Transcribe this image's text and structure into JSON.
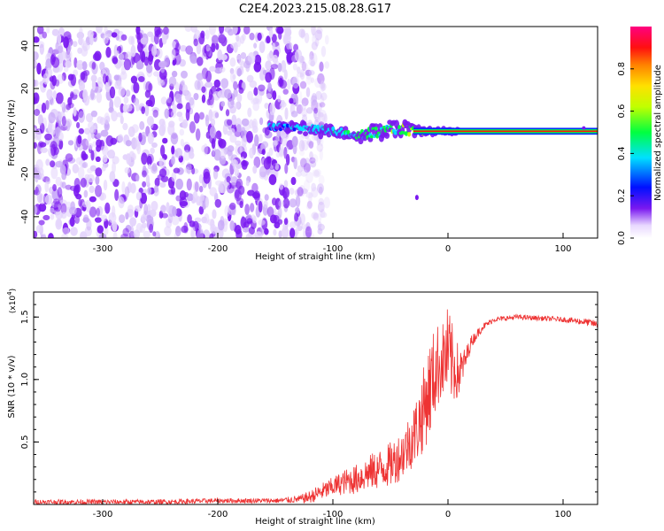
{
  "title": "C2E4.2023.215.08.28.G17",
  "colors": {
    "snr_line": "#ee3333",
    "spectrogram_weak": "#c8a8f8",
    "spectrogram_mid": "#7a18f0",
    "spectrogram_strong": "#00e0e0",
    "spectrogram_peak": "#ff2020"
  },
  "chart_data": [
    {
      "type": "heatmap",
      "xlabel": "Height of straight line (km)",
      "ylabel": "Frequency (Hz)",
      "xlim": [
        -360,
        130
      ],
      "ylim": [
        -50,
        49
      ],
      "x_ticks": [
        -300,
        -200,
        -100,
        0,
        100
      ],
      "x_tick_labels": [
        "-300",
        "-200",
        "-100",
        "0",
        "100"
      ],
      "y_ticks": [
        -40,
        -20,
        0,
        20,
        40
      ],
      "y_tick_labels": [
        "-40",
        "-20",
        "0",
        "20",
        "40"
      ],
      "colorbar": {
        "label": "Normalized spectral amplitude",
        "range": [
          0,
          1
        ],
        "ticks": [
          0.0,
          0.2,
          0.4,
          0.6,
          0.8
        ],
        "tick_labels": [
          "0.0",
          "0.2",
          "0.4",
          "0.6",
          "0.8"
        ],
        "colormap": "rainbow"
      },
      "noise_extent_x": [
        -360,
        -130
      ],
      "signal_track": {
        "x": [
          -155,
          -140,
          -120,
          -100,
          -80,
          -60,
          -40,
          -30,
          -20,
          -10,
          0,
          10,
          130
        ],
        "frequency": [
          2,
          2,
          1,
          0,
          -2,
          0,
          1,
          0,
          0,
          0,
          0,
          0,
          0
        ],
        "spread": [
          4,
          4,
          5,
          5,
          6,
          7,
          8,
          6,
          2,
          2,
          2,
          1,
          1
        ],
        "amplitude": [
          0.3,
          0.3,
          0.35,
          0.35,
          0.4,
          0.45,
          0.5,
          0.55,
          0.9,
          0.9,
          0.9,
          0.95,
          0.95
        ]
      }
    },
    {
      "type": "line",
      "xlabel": "Height of straight line (km)",
      "ylabel": "SNR (10 * v/v)",
      "y_multiplier": "(x10",
      "y_multiplier_exp": "4",
      "y_multiplier_close": ")",
      "xlim": [
        -360,
        130
      ],
      "ylim": [
        0,
        1.7
      ],
      "x_ticks": [
        -300,
        -200,
        -100,
        0,
        100
      ],
      "x_tick_labels": [
        "-300",
        "-200",
        "-100",
        "0",
        "100"
      ],
      "y_ticks": [
        0.5,
        1.0,
        1.5
      ],
      "y_tick_labels": [
        "0.5",
        "1.0",
        "1.5"
      ],
      "series": [
        {
          "x": [
            -360,
            -300,
            -250,
            -200,
            -150,
            -130,
            -120,
            -110,
            -100,
            -90,
            -80,
            -70,
            -60,
            -50,
            -40,
            -30,
            -25,
            -20,
            -15,
            -10,
            -5,
            0,
            5,
            10,
            15,
            20,
            30,
            40,
            60,
            80,
            100,
            120,
            130
          ],
          "y": [
            0.02,
            0.02,
            0.02,
            0.03,
            0.03,
            0.04,
            0.06,
            0.1,
            0.14,
            0.18,
            0.2,
            0.25,
            0.28,
            0.32,
            0.4,
            0.55,
            0.65,
            0.8,
            0.95,
            1.1,
            1.15,
            1.2,
            1.1,
            1.05,
            1.15,
            1.3,
            1.42,
            1.48,
            1.5,
            1.49,
            1.48,
            1.46,
            1.44
          ],
          "noise": [
            0.02,
            0.02,
            0.02,
            0.02,
            0.02,
            0.03,
            0.05,
            0.07,
            0.08,
            0.1,
            0.12,
            0.14,
            0.16,
            0.18,
            0.2,
            0.25,
            0.3,
            0.35,
            0.4,
            0.35,
            0.3,
            0.4,
            0.3,
            0.2,
            0.1,
            0.05,
            0.03,
            0.02,
            0.02,
            0.02,
            0.02,
            0.03,
            0.03
          ]
        }
      ]
    }
  ]
}
